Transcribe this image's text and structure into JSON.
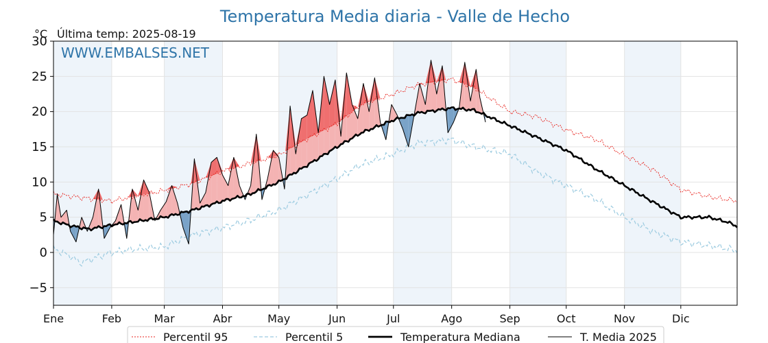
{
  "chart_data": {
    "type": "line",
    "title": "Temperatura Media diaria - Valle de Hecho",
    "unit_label": "°C",
    "last_temp_label": "Última temp: 2025-08-19",
    "watermark": "WWW.EMBALSES.NET",
    "ylim": [
      -7.5,
      30
    ],
    "yticks": [
      -5,
      0,
      5,
      10,
      15,
      20,
      25,
      30
    ],
    "xlim": [
      1,
      365
    ],
    "months": [
      {
        "label": "Ene",
        "day": 1
      },
      {
        "label": "Feb",
        "day": 32
      },
      {
        "label": "Mar",
        "day": 60
      },
      {
        "label": "Abr",
        "day": 91
      },
      {
        "label": "May",
        "day": 121
      },
      {
        "label": "Jun",
        "day": 152
      },
      {
        "label": "Jul",
        "day": 182
      },
      {
        "label": "Ago",
        "day": 213
      },
      {
        "label": "Sep",
        "day": 244
      },
      {
        "label": "Oct",
        "day": 274
      },
      {
        "label": "Nov",
        "day": 305
      },
      {
        "label": "Dic",
        "day": 335
      }
    ],
    "grid": true,
    "legend_position": "bottom",
    "colors": {
      "p95": "#e8231d",
      "p5": "#9ccbe0",
      "median": "#000000",
      "current": "#000000",
      "above_fill": "#f4b3b3",
      "above_fill_strong": "#ef6f6f",
      "below_fill": "#7aa3c8",
      "band": "#eef4fa"
    },
    "series": [
      {
        "key": "p95",
        "name": "Percentil 95",
        "x": [
          1,
          15,
          32,
          45,
          60,
          75,
          91,
          105,
          121,
          135,
          152,
          165,
          182,
          195,
          213,
          225,
          244,
          258,
          274,
          290,
          305,
          320,
          335,
          350,
          365
        ],
        "y": [
          8.3,
          7.8,
          7.3,
          8.0,
          8.8,
          9.8,
          11.5,
          12.6,
          13.8,
          16.0,
          18.3,
          21.0,
          22.5,
          23.8,
          24.6,
          23.4,
          20.0,
          19.3,
          17.4,
          16.0,
          13.8,
          11.8,
          8.9,
          7.9,
          7.3
        ]
      },
      {
        "key": "p5",
        "name": "Percentil 5",
        "x": [
          1,
          10,
          15,
          32,
          45,
          60,
          75,
          91,
          105,
          121,
          135,
          152,
          165,
          182,
          195,
          213,
          225,
          244,
          258,
          274,
          290,
          305,
          320,
          335,
          350,
          365
        ],
        "y": [
          0.5,
          -0.5,
          -1.5,
          0.0,
          0.5,
          0.8,
          2.5,
          3.5,
          4.5,
          6.0,
          8.0,
          10.5,
          12.5,
          14.0,
          15.5,
          16.0,
          15.0,
          14.0,
          11.5,
          9.5,
          7.5,
          5.0,
          3.0,
          1.5,
          1.0,
          0.3
        ]
      },
      {
        "key": "median",
        "name": "Temperatura Mediana",
        "x": [
          1,
          10,
          20,
          32,
          45,
          60,
          75,
          91,
          105,
          121,
          135,
          152,
          165,
          182,
          195,
          213,
          225,
          235,
          244,
          258,
          274,
          290,
          305,
          320,
          335,
          350,
          360,
          365
        ],
        "y": [
          4.5,
          3.8,
          3.3,
          3.9,
          4.4,
          5.0,
          6.0,
          7.3,
          8.2,
          10.0,
          12.2,
          15.0,
          17.0,
          18.8,
          19.8,
          20.5,
          20.2,
          19.0,
          18.0,
          16.4,
          14.5,
          11.8,
          9.5,
          7.2,
          5.0,
          5.0,
          4.3,
          3.7
        ]
      },
      {
        "key": "current",
        "name": "T. Media 2025",
        "x": [
          1,
          3,
          5,
          8,
          10,
          13,
          16,
          19,
          22,
          25,
          28,
          31,
          34,
          37,
          40,
          43,
          46,
          49,
          52,
          55,
          58,
          61,
          64,
          67,
          70,
          73,
          76,
          79,
          82,
          85,
          88,
          91,
          94,
          97,
          100,
          103,
          106,
          109,
          112,
          115,
          118,
          121,
          124,
          127,
          130,
          133,
          136,
          139,
          142,
          145,
          148,
          151,
          154,
          157,
          160,
          163,
          166,
          169,
          172,
          175,
          178,
          181,
          184,
          187,
          190,
          193,
          196,
          199,
          202,
          205,
          208,
          211,
          214,
          217,
          220,
          223,
          226,
          228,
          231
        ],
        "y": [
          2.5,
          8.3,
          5.0,
          6.0,
          3.0,
          1.5,
          5.0,
          3.0,
          5.0,
          9.0,
          2.0,
          3.5,
          4.5,
          6.8,
          2.0,
          9.0,
          6.0,
          10.3,
          8.5,
          4.5,
          6.0,
          7.2,
          9.5,
          7.0,
          3.5,
          1.2,
          13.3,
          7.0,
          8.5,
          12.8,
          13.5,
          11.0,
          9.5,
          13.5,
          9.5,
          7.5,
          9.5,
          16.8,
          7.5,
          10.5,
          14.5,
          13.5,
          9.0,
          20.8,
          14.0,
          19.0,
          19.5,
          23.0,
          17.0,
          25.0,
          21.0,
          24.5,
          16.5,
          25.5,
          21.0,
          19.0,
          24.0,
          20.0,
          24.8,
          18.5,
          16.0,
          21.0,
          19.5,
          17.5,
          15.0,
          19.5,
          24.0,
          21.0,
          27.3,
          22.5,
          26.5,
          17.0,
          18.5,
          20.5,
          27.0,
          21.5,
          26.0,
          22.0,
          18.5
        ]
      }
    ]
  }
}
